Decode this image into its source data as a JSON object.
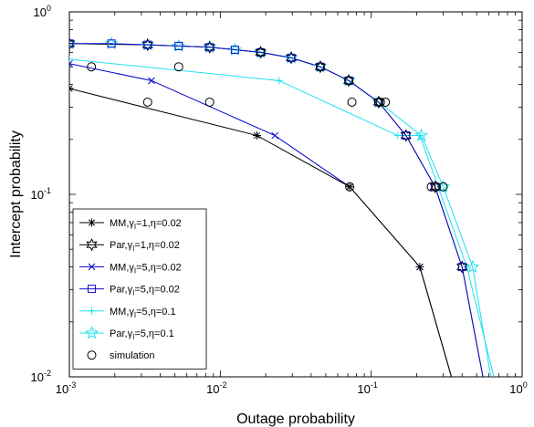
{
  "chart_data": {
    "type": "line",
    "xlabel": "Outage probability",
    "ylabel": "Intercept probability",
    "xscale": "log",
    "yscale": "log",
    "xlim": [
      0.001,
      1
    ],
    "ylim": [
      0.01,
      1
    ],
    "grid": false,
    "legend_position": "bottom-left",
    "x_ticks": [
      {
        "value": 0.001,
        "base": "10",
        "exp": "-3"
      },
      {
        "value": 0.01,
        "base": "10",
        "exp": "-2"
      },
      {
        "value": 0.1,
        "base": "10",
        "exp": "-1"
      },
      {
        "value": 1,
        "base": "10",
        "exp": "0"
      }
    ],
    "y_ticks": [
      {
        "value": 0.01,
        "base": "10",
        "exp": "-2"
      },
      {
        "value": 0.1,
        "base": "10",
        "exp": "-1"
      },
      {
        "value": 1,
        "base": "10",
        "exp": "0"
      }
    ],
    "series": [
      {
        "name": "MM,γ_I=1,η=0.02",
        "label_parts": [
          "MM,γ",
          "I",
          "=1,η=0.02"
        ],
        "color": "#000000",
        "marker": "asterisk",
        "x": [
          0.001,
          0.0175,
          0.072,
          0.21,
          0.34
        ],
        "y": [
          0.38,
          0.21,
          0.11,
          0.04,
          0.01
        ]
      },
      {
        "name": "Par,γ_I=1,η=0.02",
        "label_parts": [
          "Par,γ",
          "I",
          "=1,η=0.02"
        ],
        "color": "#000000",
        "marker": "hexagram",
        "x": [
          0.001,
          0.0033,
          0.0085,
          0.0185,
          0.0295,
          0.046,
          0.071,
          0.112,
          0.17,
          0.265,
          0.4,
          0.55
        ],
        "y": [
          0.67,
          0.66,
          0.64,
          0.6,
          0.56,
          0.5,
          0.42,
          0.32,
          0.21,
          0.11,
          0.04,
          0.01
        ]
      },
      {
        "name": "MM,γ_I=5,η=0.02",
        "label_parts": [
          "MM,γ",
          "I",
          "=5,η=0.02"
        ],
        "color": "#0000cc",
        "marker": "x",
        "x": [
          0.001,
          0.0035,
          0.023,
          0.072,
          0.21,
          0.34
        ],
        "y": [
          0.52,
          0.42,
          0.21,
          0.11,
          0.04,
          0.01
        ]
      },
      {
        "name": "Par,γ_I=5,η=0.02",
        "label_parts": [
          "Par,γ",
          "I",
          "=5,η=0.02"
        ],
        "color": "#1010cc",
        "marker": "square",
        "x": [
          0.001,
          0.0019,
          0.0033,
          0.0053,
          0.0085,
          0.0125,
          0.0185,
          0.0295,
          0.046,
          0.071,
          0.112,
          0.17,
          0.265,
          0.4,
          0.55
        ],
        "y": [
          0.67,
          0.67,
          0.66,
          0.65,
          0.64,
          0.62,
          0.6,
          0.56,
          0.5,
          0.42,
          0.32,
          0.21,
          0.11,
          0.04,
          0.01
        ]
      },
      {
        "name": "MM,γ_I=5,η=0.1",
        "label_parts": [
          "MM,γ",
          "I",
          "=5,η=0.1"
        ],
        "color": "#1fe0ee",
        "marker": "plus",
        "x": [
          0.001,
          0.0245,
          0.15,
          0.21,
          0.43,
          0.65
        ],
        "y": [
          0.55,
          0.42,
          0.21,
          0.21,
          0.04,
          0.01
        ]
      },
      {
        "name": "Par,γ_I=5,η=0.1",
        "label_parts": [
          "Par,γ",
          "I",
          "=5,η=0.1"
        ],
        "color": "#1fe0ee",
        "marker": "pentagram",
        "x": [
          0.001,
          0.0019,
          0.0033,
          0.0053,
          0.0085,
          0.0125,
          0.0185,
          0.0295,
          0.046,
          0.071,
          0.112,
          0.215,
          0.3,
          0.47,
          0.62
        ],
        "y": [
          0.67,
          0.67,
          0.66,
          0.65,
          0.64,
          0.62,
          0.6,
          0.56,
          0.5,
          0.42,
          0.32,
          0.21,
          0.11,
          0.04,
          0.01
        ]
      },
      {
        "name": "simulation",
        "label_parts": [
          "simulation",
          "",
          ""
        ],
        "color": "#000000",
        "marker": "circle",
        "line": false,
        "x": [
          0.0014,
          0.0033,
          0.0053,
          0.0085,
          0.0185,
          0.046,
          0.071,
          0.0745,
          0.072,
          0.112,
          0.115,
          0.124,
          0.25,
          0.27,
          0.3
        ],
        "y": [
          0.5,
          0.32,
          0.5,
          0.32,
          0.6,
          0.5,
          0.42,
          0.32,
          0.11,
          0.32,
          0.32,
          0.32,
          0.11,
          0.11,
          0.11
        ]
      }
    ]
  }
}
